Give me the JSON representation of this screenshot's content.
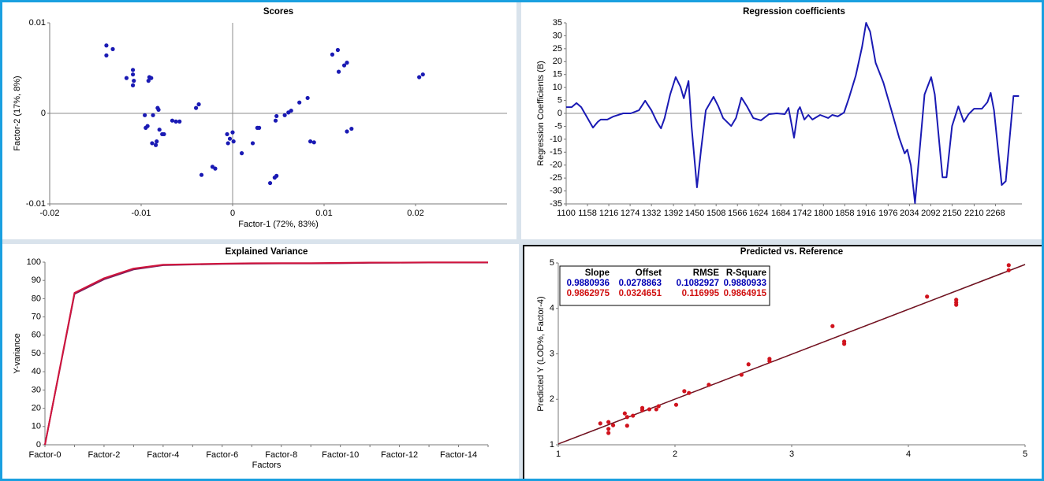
{
  "chart_data": [
    {
      "type": "scatter",
      "title": "Scores",
      "x_label": "Factor-1 (72%, 83%)",
      "y_label": "Factor-2 (17%, 8%)",
      "color": "#1a1ab4",
      "xlim": [
        -0.02,
        0.03
      ],
      "xticks": [
        -0.02,
        -0.01,
        0,
        0.01,
        0.02
      ],
      "ylim": [
        -0.01,
        0.01
      ],
      "yticks": [
        -0.01,
        0,
        0.01
      ],
      "x": [
        -0.0138,
        -0.0138,
        -0.0131,
        -0.0116,
        -0.0109,
        -0.0109,
        -0.0108,
        -0.0109,
        -0.0091,
        -0.0092,
        -0.0089,
        -0.0096,
        -0.0095,
        -0.0093,
        -0.0087,
        -0.0088,
        -0.0084,
        -0.0083,
        -0.0082,
        -0.0081,
        -0.008,
        -0.0077,
        -0.0075,
        -0.0066,
        -0.0062,
        -0.0058,
        -0.004,
        -0.0037,
        -0.0034,
        -0.0022,
        -0.0019,
        -0.0006,
        -0.0005,
        -0.0003,
        0.0,
        0.0001,
        0.001,
        0.0022,
        0.0027,
        0.0029,
        0.0041,
        0.0046,
        0.0048,
        0.0047,
        0.0048,
        0.0057,
        0.0061,
        0.0064,
        0.0073,
        0.0082,
        0.0085,
        0.0089,
        0.0109,
        0.0115,
        0.0116,
        0.0122,
        0.0125,
        0.0125,
        0.013,
        0.0204,
        0.0208
      ],
      "values": [
        0.0075,
        0.0064,
        0.0071,
        0.0039,
        0.0043,
        0.0048,
        0.0036,
        0.0031,
        0.004,
        0.0036,
        0.0039,
        -0.0002,
        -0.0016,
        -0.0014,
        -0.0002,
        -0.0033,
        -0.0035,
        -0.0031,
        0.0006,
        0.0004,
        -0.0018,
        -0.0023,
        -0.0023,
        -0.0008,
        -0.0009,
        -0.0009,
        0.0006,
        0.001,
        -0.0068,
        -0.0059,
        -0.0061,
        -0.0023,
        -0.0033,
        -0.0028,
        -0.0021,
        -0.0031,
        -0.0044,
        -0.0033,
        -0.0016,
        -0.0016,
        -0.0077,
        -0.0071,
        -0.0069,
        -0.0008,
        -0.0003,
        -0.0002,
        0.0001,
        0.0003,
        0.0012,
        0.0017,
        -0.0031,
        -0.0032,
        0.0065,
        0.007,
        0.0046,
        0.0053,
        0.0056,
        -0.002,
        -0.0017,
        0.004,
        0.0043
      ]
    },
    {
      "type": "line",
      "title": "Regression coefficients",
      "y_label": "Regression Coefficients (B)",
      "color": "#1a1ab4",
      "xlim": [
        1100,
        2340
      ],
      "xticks": [
        1100,
        1158,
        1216,
        1274,
        1332,
        1392,
        1450,
        1508,
        1566,
        1624,
        1684,
        1742,
        1800,
        1858,
        1916,
        1976,
        2034,
        2092,
        2150,
        2210,
        2268
      ],
      "ylim": [
        -35,
        35
      ],
      "yticks": [
        -35,
        -30,
        -25,
        -20,
        -15,
        -10,
        -5,
        0,
        5,
        10,
        15,
        20,
        25,
        30,
        35
      ],
      "x": [
        1100,
        1115,
        1128,
        1141,
        1158,
        1173,
        1186,
        1194,
        1212,
        1229,
        1255,
        1276,
        1298,
        1315,
        1332,
        1347,
        1358,
        1368,
        1383,
        1398,
        1411,
        1420,
        1433,
        1441,
        1456,
        1467,
        1480,
        1501,
        1514,
        1527,
        1549,
        1562,
        1577,
        1592,
        1609,
        1630,
        1652,
        1673,
        1695,
        1705,
        1720,
        1731,
        1736,
        1748,
        1759,
        1770,
        1791,
        1813,
        1824,
        1839,
        1856,
        1869,
        1888,
        1905,
        1916,
        1927,
        1942,
        1963,
        1985,
        2006,
        2021,
        2028,
        2038,
        2049,
        2060,
        2075,
        2093,
        2103,
        2124,
        2135,
        2150,
        2167,
        2182,
        2195,
        2210,
        2231,
        2246,
        2255,
        2264,
        2285,
        2296,
        2317,
        2332
      ],
      "values": [
        2.4,
        2.4,
        4.0,
        2.4,
        -1.8,
        -5.5,
        -3.3,
        -2.4,
        -2.4,
        -1.2,
        0,
        0,
        1.2,
        4.9,
        1.2,
        -3.3,
        -5.8,
        -1.8,
        7.3,
        14.0,
        10.3,
        5.8,
        12.5,
        -4.9,
        -28.6,
        -14.0,
        1.2,
        6.4,
        2.7,
        -1.8,
        -4.9,
        -1.8,
        6.1,
        2.7,
        -1.8,
        -2.7,
        -0.3,
        0,
        -0.3,
        2.1,
        -9.4,
        1.2,
        2.4,
        -2.4,
        -0.6,
        -2.4,
        -0.6,
        -1.8,
        -0.6,
        -1.2,
        0.3,
        5.8,
        14.6,
        25.6,
        35.0,
        31.6,
        19.5,
        11.9,
        1.2,
        -9.4,
        -15.5,
        -14.0,
        -20.1,
        -34.7,
        -17.0,
        7.3,
        14.0,
        7.3,
        -24.7,
        -24.7,
        -4.9,
        2.7,
        -3.3,
        -0.3,
        1.8,
        1.8,
        4.3,
        7.9,
        1.2,
        -27.7,
        -26.2,
        6.7,
        6.7
      ]
    },
    {
      "type": "line",
      "title": "Explained Variance",
      "x_label": "Factors",
      "y_label": "Y-variance",
      "categories": [
        "Factor-0",
        null,
        "Factor-2",
        null,
        "Factor-4",
        null,
        "Factor-6",
        null,
        "Factor-8",
        null,
        "Factor-10",
        null,
        "Factor-12",
        null,
        "Factor-14",
        null
      ],
      "ylim": [
        0,
        100
      ],
      "yticks": [
        0,
        10,
        20,
        30,
        40,
        50,
        60,
        70,
        80,
        90,
        100
      ],
      "series": [
        {
          "color": "#7a1f5c",
          "values": [
            0,
            82.6,
            90.6,
            96.0,
            98.3,
            98.7,
            99.0,
            99.2,
            99.3,
            99.3,
            99.4,
            99.6,
            99.7,
            99.8,
            99.8,
            99.8
          ]
        },
        {
          "color": "#d0143c",
          "values": [
            0,
            83.2,
            91.2,
            96.5,
            98.6,
            98.9,
            99.2,
            99.4,
            99.5,
            99.5,
            99.6,
            99.8,
            99.8,
            99.9,
            99.9,
            99.9
          ]
        }
      ]
    },
    {
      "type": "scatter",
      "title": "Predicted vs. Reference",
      "y_label": "Predicted Y (LOD%, Factor-4)",
      "color": "#d0141e",
      "xlim": [
        1,
        5
      ],
      "xticks": [
        1,
        2,
        3,
        4,
        5
      ],
      "ylim": [
        1,
        5
      ],
      "yticks": [
        1,
        2,
        3,
        4,
        5
      ],
      "x": [
        1.36,
        1.43,
        1.43,
        1.43,
        1.47,
        1.57,
        1.59,
        1.59,
        1.64,
        1.72,
        1.72,
        1.78,
        1.84,
        1.86,
        2.01,
        2.08,
        2.12,
        2.29,
        2.57,
        2.63,
        2.81,
        2.81,
        3.35,
        3.45,
        3.45,
        4.16,
        4.41,
        4.41,
        4.41,
        4.86,
        4.86
      ],
      "values": [
        1.47,
        1.5,
        1.35,
        1.26,
        1.43,
        1.69,
        1.61,
        1.42,
        1.64,
        1.81,
        1.76,
        1.78,
        1.78,
        1.85,
        1.88,
        2.18,
        2.14,
        2.32,
        2.54,
        2.77,
        2.84,
        2.89,
        3.61,
        3.27,
        3.22,
        4.26,
        4.19,
        4.13,
        4.08,
        4.95,
        4.84
      ],
      "stats": {
        "columns": [
          "Slope",
          "Offset",
          "RMSE",
          "R-Square"
        ],
        "rows": [
          {
            "color": "#0000b4",
            "line_color": "#1a1a1a",
            "values": [
              0.9880936,
              0.0278863,
              0.1082927,
              0.9880933
            ]
          },
          {
            "color": "#d01010",
            "line_color": "#7a1020",
            "values": [
              0.9862975,
              0.0324651,
              0.116995,
              0.9864915
            ]
          }
        ]
      }
    }
  ]
}
